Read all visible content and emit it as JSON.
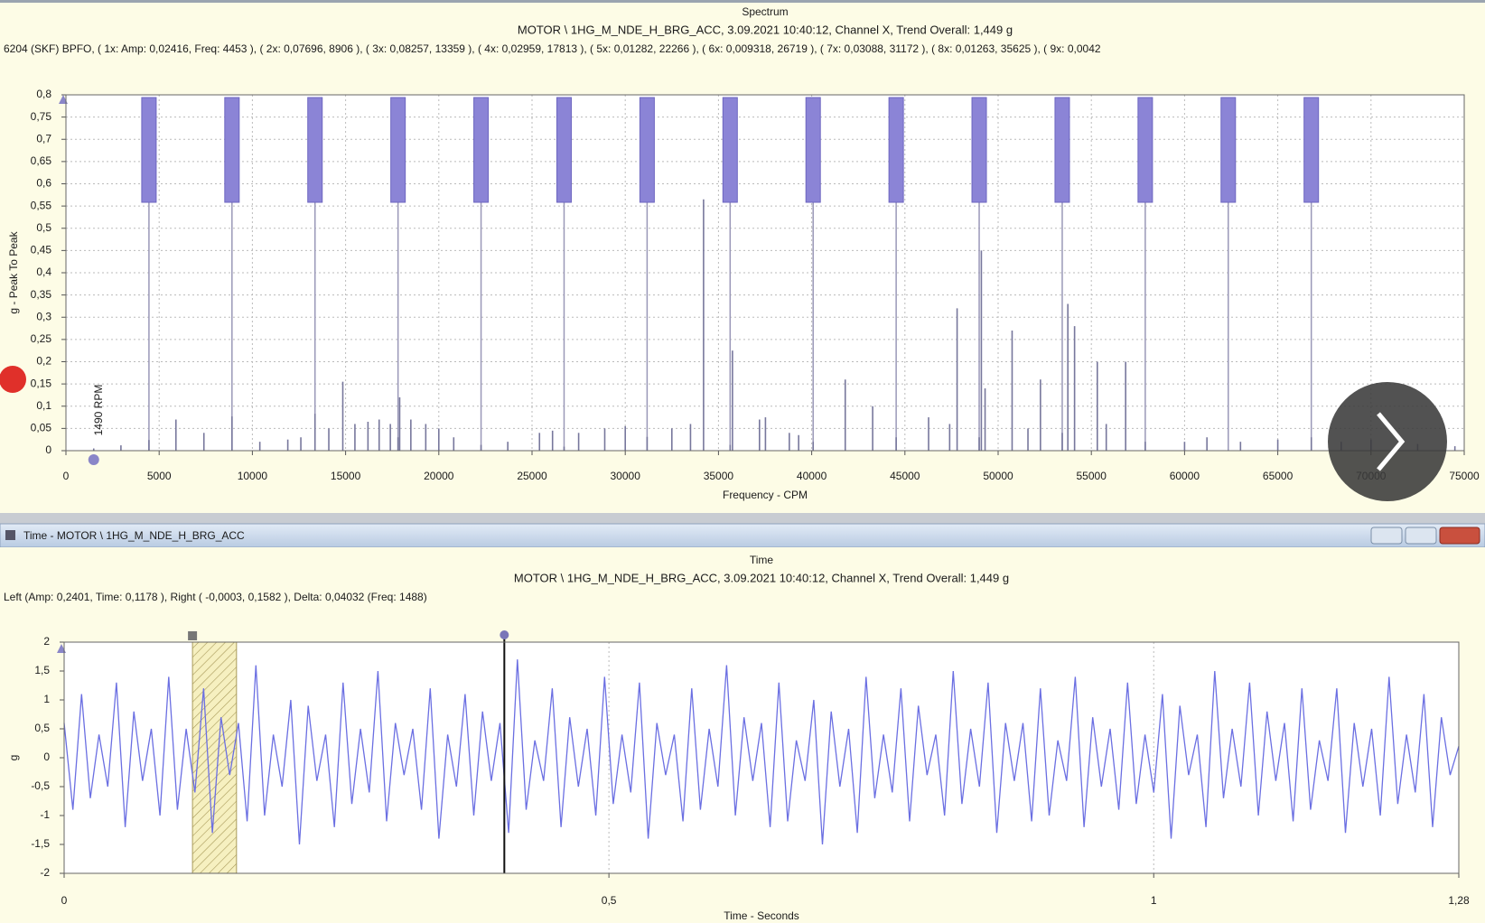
{
  "window_title": "Time - MOTOR \\ 1HG_M_NDE_H_BRG_ACC",
  "chart_data": [
    {
      "type": "stem",
      "title": "Spectrum",
      "subtitle": "MOTOR \\ 1HG_M_NDE_H_BRG_ACC, 3.09.2021 10:40:12, Channel X, Trend Overall: 1,449 g",
      "annotation": "6204 (SKF) BPFO, ( 1x:  Amp: 0,02416, Freq: 4453 ), ( 2x:  0,07696, 8906 ), ( 3x:  0,08257, 13359 ), ( 4x:  0,02959, 17813 ), ( 5x:  0,01282, 22266 ), ( 6x:  0,009318, 26719 ), ( 7x:  0,03088, 31172 ), ( 8x:  0,01263, 35625 ), ( 9x:  0,0042",
      "xlabel": "Frequency - CPM",
      "ylabel": "g - Peak To Peak",
      "rpm_label": "1490 RPM",
      "cursor": 1490,
      "color": "#77779c",
      "marker_color": "#8b84d6",
      "grid": true,
      "xlim": [
        0,
        75000
      ],
      "ylim": [
        0,
        0.8
      ],
      "xticks": [
        0,
        5000,
        10000,
        15000,
        20000,
        25000,
        30000,
        35000,
        40000,
        45000,
        50000,
        55000,
        60000,
        65000,
        70000,
        75000
      ],
      "yticks": [
        0,
        {
          "value": 0.05,
          "label": "0,05"
        },
        {
          "value": 0.1,
          "label": "0,1"
        },
        {
          "value": 0.15,
          "label": "0,15"
        },
        {
          "value": 0.2,
          "label": "0,2"
        },
        {
          "value": 0.25,
          "label": "0,25"
        },
        {
          "value": 0.3,
          "label": "0,3"
        },
        {
          "value": 0.35,
          "label": "0,35"
        },
        {
          "value": 0.4,
          "label": "0,4"
        },
        {
          "value": 0.45,
          "label": "0,45"
        },
        {
          "value": 0.5,
          "label": "0,5"
        },
        {
          "value": 0.55,
          "label": "0,55"
        },
        {
          "value": 0.6,
          "label": "0,6"
        },
        {
          "value": 0.65,
          "label": "0,65"
        },
        {
          "value": 0.7,
          "label": "0,7"
        },
        {
          "value": 0.75,
          "label": "0,75"
        },
        {
          "value": 0.8,
          "label": "0,8"
        }
      ],
      "harmonic_markers": [
        4453,
        8906,
        13359,
        17813,
        22266,
        26719,
        31172,
        35625,
        40078,
        44531,
        48984,
        53438,
        57891,
        62344,
        66797
      ],
      "x": [
        1490,
        2950,
        4453,
        5900,
        7400,
        8906,
        10400,
        11900,
        12600,
        13359,
        14100,
        14850,
        15500,
        16200,
        16800,
        17400,
        17813,
        17900,
        18500,
        19300,
        20000,
        20800,
        22266,
        23700,
        25400,
        26100,
        26719,
        27500,
        28900,
        30000,
        31172,
        32500,
        33500,
        34200,
        35625,
        35750,
        37200,
        37520,
        38800,
        39300,
        40078,
        41800,
        43270,
        44531,
        46270,
        47400,
        47800,
        48984,
        49100,
        49300,
        50750,
        51600,
        52270,
        53438,
        53740,
        54100,
        55320,
        55800,
        56840,
        57891,
        60000,
        61200,
        63000,
        65000,
        66800,
        68400,
        70000,
        72500,
        74500
      ],
      "values": [
        0.005,
        0.012,
        0.024,
        0.07,
        0.04,
        0.077,
        0.02,
        0.025,
        0.03,
        0.083,
        0.05,
        0.155,
        0.06,
        0.065,
        0.07,
        0.06,
        0.03,
        0.12,
        0.07,
        0.06,
        0.05,
        0.03,
        0.013,
        0.02,
        0.04,
        0.045,
        0.009,
        0.04,
        0.05,
        0.055,
        0.031,
        0.05,
        0.06,
        0.565,
        0.013,
        0.225,
        0.07,
        0.075,
        0.04,
        0.035,
        0.02,
        0.16,
        0.1,
        0.03,
        0.075,
        0.06,
        0.32,
        0.03,
        0.45,
        0.14,
        0.27,
        0.05,
        0.16,
        0.04,
        0.33,
        0.28,
        0.2,
        0.06,
        0.2,
        0.02,
        0.02,
        0.03,
        0.02,
        0.025,
        0.03,
        0.02,
        0.025,
        0.015,
        0.01
      ]
    },
    {
      "type": "line",
      "title": "Time",
      "subtitle": "MOTOR \\ 1HG_M_NDE_H_BRG_ACC, 3.09.2021 10:40:12, Channel X, Trend Overall: 1,449 g",
      "annotation": "Left (Amp: 0,2401, Time: 0,1178 ), Right ( -0,0003, 0,1582 ), Delta: 0,04032 (Freq: 1488)",
      "xlabel": "Time - Seconds",
      "ylabel": "g",
      "color": "#6b6fe2",
      "grid": "x",
      "cursor_band": [
        0.1178,
        0.1582
      ],
      "cursor_line": 0.404,
      "xlim": [
        0,
        1.28
      ],
      "ylim": [
        -2,
        2
      ],
      "xticks": [
        0,
        {
          "value": 0.5,
          "label": "0,5"
        },
        1,
        {
          "value": 1.28,
          "label": "1,28"
        }
      ],
      "yticks": [
        2,
        {
          "value": 1.5,
          "label": "1,5"
        },
        1,
        {
          "value": 0.5,
          "label": "0,5"
        },
        0,
        {
          "value": -0.5,
          "label": "-0,5"
        },
        -1,
        {
          "value": -1.5,
          "label": "-1,5"
        },
        -2
      ],
      "x": [
        0,
        0.008,
        0.016,
        0.024,
        0.032,
        0.04,
        0.048,
        0.056,
        0.064,
        0.072,
        0.08,
        0.088,
        0.096,
        0.104,
        0.112,
        0.12,
        0.128,
        0.136,
        0.144,
        0.152,
        0.16,
        0.168,
        0.176,
        0.184,
        0.192,
        0.2,
        0.208,
        0.216,
        0.224,
        0.232,
        0.24,
        0.248,
        0.256,
        0.264,
        0.272,
        0.28,
        0.288,
        0.296,
        0.304,
        0.312,
        0.32,
        0.328,
        0.336,
        0.344,
        0.352,
        0.36,
        0.368,
        0.376,
        0.384,
        0.392,
        0.4,
        0.408,
        0.416,
        0.424,
        0.432,
        0.44,
        0.448,
        0.456,
        0.464,
        0.472,
        0.48,
        0.488,
        0.496,
        0.504,
        0.512,
        0.52,
        0.528,
        0.536,
        0.544,
        0.552,
        0.56,
        0.568,
        0.576,
        0.584,
        0.592,
        0.6,
        0.608,
        0.616,
        0.624,
        0.632,
        0.64,
        0.648,
        0.656,
        0.664,
        0.672,
        0.68,
        0.688,
        0.696,
        0.704,
        0.712,
        0.72,
        0.728,
        0.736,
        0.744,
        0.752,
        0.76,
        0.768,
        0.776,
        0.784,
        0.792,
        0.8,
        0.808,
        0.816,
        0.824,
        0.832,
        0.84,
        0.848,
        0.856,
        0.864,
        0.872,
        0.88,
        0.888,
        0.896,
        0.904,
        0.912,
        0.92,
        0.928,
        0.936,
        0.944,
        0.952,
        0.96,
        0.968,
        0.976,
        0.984,
        0.992,
        1,
        1.008,
        1.016,
        1.024,
        1.032,
        1.04,
        1.048,
        1.056,
        1.064,
        1.072,
        1.08,
        1.088,
        1.096,
        1.104,
        1.112,
        1.12,
        1.128,
        1.136,
        1.144,
        1.152,
        1.16,
        1.168,
        1.176,
        1.184,
        1.192,
        1.2,
        1.208,
        1.216,
        1.224,
        1.232,
        1.24,
        1.248,
        1.256,
        1.264,
        1.272,
        1.28
      ],
      "values": [
        0.6,
        -0.9,
        1.1,
        -0.7,
        0.4,
        -0.5,
        1.3,
        -1.2,
        0.8,
        -0.4,
        0.5,
        -1.0,
        1.4,
        -0.9,
        0.5,
        -0.6,
        1.2,
        -1.3,
        0.7,
        -0.3,
        0.6,
        -1.1,
        1.6,
        -1.0,
        0.4,
        -0.5,
        1.0,
        -1.5,
        0.9,
        -0.4,
        0.4,
        -1.2,
        1.3,
        -0.8,
        0.5,
        -0.6,
        1.5,
        -1.1,
        0.6,
        -0.3,
        0.5,
        -0.9,
        1.2,
        -1.4,
        0.4,
        -0.5,
        1.1,
        -1.0,
        0.8,
        -0.4,
        0.6,
        -1.3,
        1.7,
        -0.9,
        0.3,
        -0.4,
        1.2,
        -1.2,
        0.7,
        -0.5,
        0.5,
        -1.0,
        1.4,
        -0.8,
        0.4,
        -0.6,
        1.3,
        -1.4,
        0.6,
        -0.3,
        0.4,
        -1.1,
        1.2,
        -0.9,
        0.5,
        -0.5,
        1.6,
        -1.0,
        0.7,
        -0.4,
        0.6,
        -1.2,
        1.3,
        -1.1,
        0.3,
        -0.4,
        1.0,
        -1.5,
        0.8,
        -0.5,
        0.5,
        -1.3,
        1.4,
        -0.7,
        0.4,
        -0.6,
        1.2,
        -1.1,
        0.9,
        -0.3,
        0.4,
        -1.0,
        1.5,
        -0.8,
        0.5,
        -0.5,
        1.3,
        -1.3,
        0.6,
        -0.4,
        0.6,
        -1.1,
        1.2,
        -1.0,
        0.3,
        -0.4,
        1.4,
        -1.2,
        0.7,
        -0.5,
        0.5,
        -0.9,
        1.3,
        -0.8,
        0.4,
        -0.6,
        1.1,
        -1.4,
        0.9,
        -0.3,
        0.4,
        -1.2,
        1.5,
        -0.7,
        0.5,
        -0.5,
        1.3,
        -1.0,
        0.8,
        -0.4,
        0.6,
        -1.1,
        1.2,
        -0.9,
        0.3,
        -0.4,
        1.2,
        -1.3,
        0.6,
        -0.5,
        0.5,
        -1.0,
        1.4,
        -0.8,
        0.4,
        -0.6,
        1.1,
        -1.2,
        0.7,
        -0.3,
        0.2
      ]
    }
  ]
}
